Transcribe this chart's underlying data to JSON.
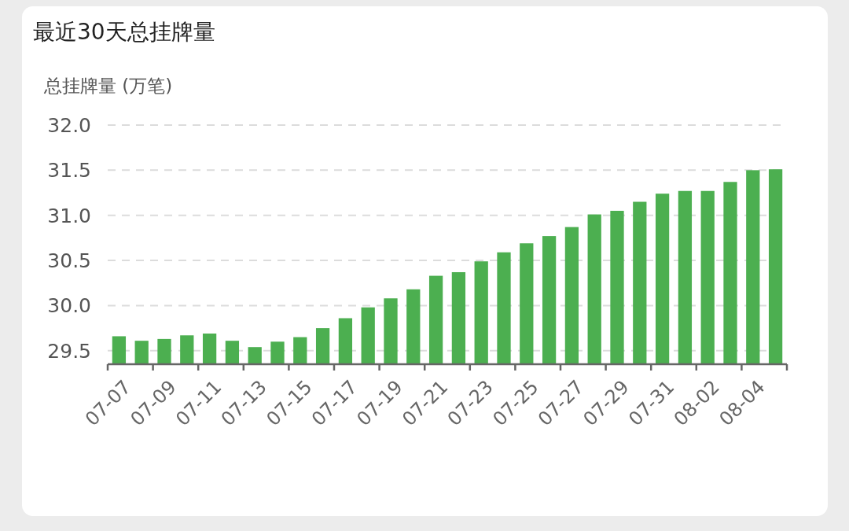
{
  "chart_data": {
    "type": "bar",
    "title": "最近30天总挂牌量",
    "ylabel": "总挂牌量 (万笔)",
    "categories": [
      "07-07",
      null,
      "07-09",
      null,
      "07-11",
      null,
      "07-13",
      null,
      "07-15",
      null,
      "07-17",
      null,
      "07-19",
      null,
      "07-21",
      null,
      "07-23",
      null,
      "07-25",
      null,
      "07-27",
      null,
      "07-29",
      null,
      "07-31",
      null,
      "08-02",
      null,
      "08-04",
      null
    ],
    "values": [
      29.66,
      29.61,
      29.63,
      29.67,
      29.69,
      29.61,
      29.54,
      29.6,
      29.65,
      29.75,
      29.86,
      29.98,
      30.08,
      30.18,
      30.33,
      30.37,
      30.49,
      30.59,
      30.69,
      30.77,
      30.87,
      31.01,
      31.05,
      31.15,
      31.24,
      31.27,
      31.27,
      31.37,
      31.5,
      31.51
    ],
    "color": "#4caf50",
    "ylim": [
      29.35,
      32.0
    ],
    "yticks": [
      29.5,
      {
        "value": 30,
        "label": "30.0"
      },
      30.5,
      {
        "value": 31,
        "label": "31.0"
      },
      31.5,
      {
        "value": 32,
        "label": "32.0"
      }
    ],
    "grid": "y"
  }
}
